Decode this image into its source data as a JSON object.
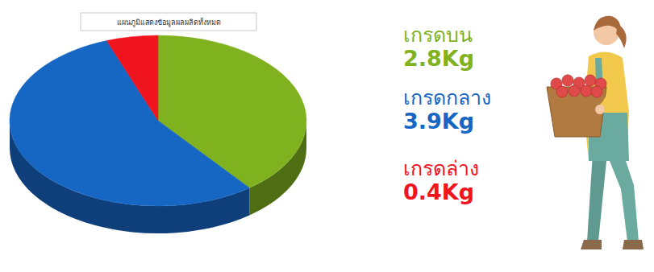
{
  "chart_data": {
    "type": "pie",
    "title": "แผนภูมิแสดงข้อมูลผลผลิตทั้งหมด",
    "categories": [
      "เกรดบน",
      "เกรดกลาง",
      "เกรดล่าง"
    ],
    "values": [
      2.8,
      3.9,
      0.4
    ],
    "value_labels": [
      "2.8Kg",
      "3.9Kg",
      "0.4Kg"
    ],
    "colors": [
      "#7fb21e",
      "#1666c4",
      "#f0141e"
    ],
    "data_labels": true
  }
}
